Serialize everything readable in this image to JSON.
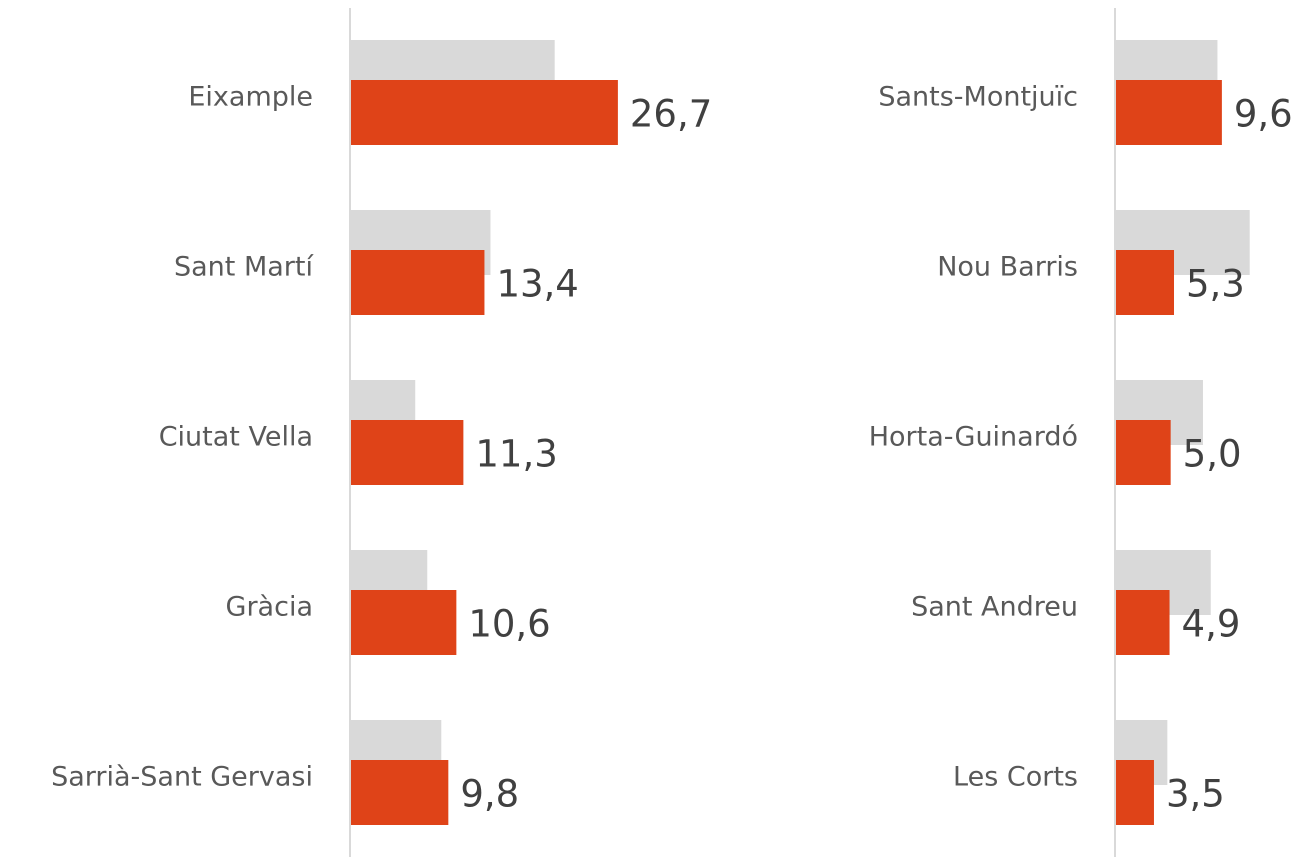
{
  "chart_data": [
    {
      "type": "bar",
      "categories": [
        "Eixample",
        "Sant Martí",
        "Ciutat Vella",
        "Gràcia",
        "Sarrià-Sant Gervasi"
      ],
      "series": [
        {
          "color": "#d9d9d9",
          "values": [
            20.4,
            14.0,
            6.5,
            7.7,
            9.1
          ]
        },
        {
          "color": "#df4318",
          "values": [
            26.7,
            13.4,
            11.3,
            10.6,
            9.8
          ],
          "value_labels": [
            "26,7",
            "13,4",
            "11,3",
            "10,6",
            "9,8"
          ]
        }
      ],
      "xlim": [
        0,
        30
      ]
    },
    {
      "type": "bar",
      "categories": [
        "Sants-Montjuïc",
        "Nou Barris",
        "Horta-Guinardó",
        "Sant Andreu",
        "Les Corts"
      ],
      "series": [
        {
          "color": "#d9d9d9",
          "values": [
            9.2,
            12.1,
            7.9,
            8.6,
            4.7
          ]
        },
        {
          "color": "#df4318",
          "values": [
            9.6,
            5.3,
            5.0,
            4.9,
            3.5
          ],
          "value_labels": [
            "9,6",
            "5,3",
            "5,0",
            "4,9",
            "3,5"
          ]
        }
      ],
      "xlim": [
        0,
        15
      ]
    }
  ]
}
